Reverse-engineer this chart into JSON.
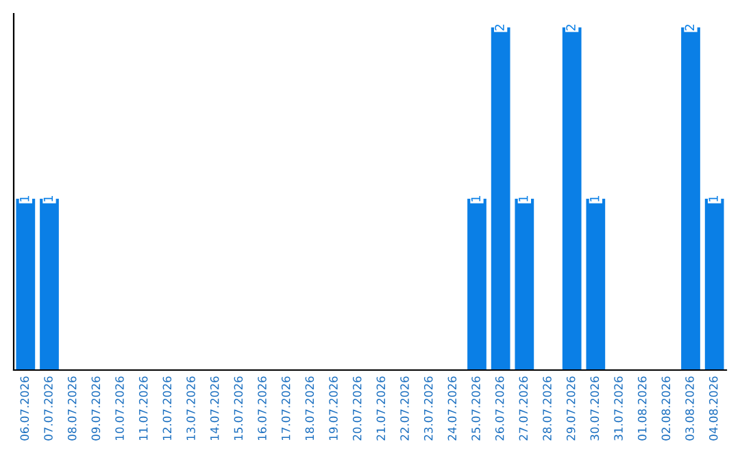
{
  "chart_data": {
    "type": "bar",
    "categories": [
      "06.07.2026",
      "07.07.2026",
      "08.07.2026",
      "09.07.2026",
      "10.07.2026",
      "11.07.2026",
      "12.07.2026",
      "13.07.2026",
      "14.07.2026",
      "15.07.2026",
      "16.07.2026",
      "17.07.2026",
      "18.07.2026",
      "19.07.2026",
      "20.07.2026",
      "21.07.2026",
      "22.07.2026",
      "23.07.2026",
      "24.07.2026",
      "25.07.2026",
      "26.07.2026",
      "27.07.2026",
      "28.07.2026",
      "29.07.2026",
      "30.07.2026",
      "31.07.2026",
      "01.08.2026",
      "02.08.2026",
      "03.08.2026",
      "04.08.2026"
    ],
    "values": [
      1,
      1,
      0,
      0,
      0,
      0,
      0,
      0,
      0,
      0,
      0,
      0,
      0,
      0,
      0,
      0,
      0,
      0,
      0,
      1,
      2,
      1,
      0,
      2,
      1,
      0,
      0,
      0,
      2,
      1
    ],
    "color": "#0a7fe6",
    "value_labels": [
      "1",
      "1",
      null,
      null,
      null,
      null,
      null,
      null,
      null,
      null,
      null,
      null,
      null,
      null,
      null,
      null,
      null,
      null,
      null,
      "1",
      "2",
      "1",
      null,
      "2",
      "1",
      null,
      null,
      null,
      "2",
      "1"
    ],
    "tick_labels": "x",
    "grid": false,
    "legend": false
  }
}
